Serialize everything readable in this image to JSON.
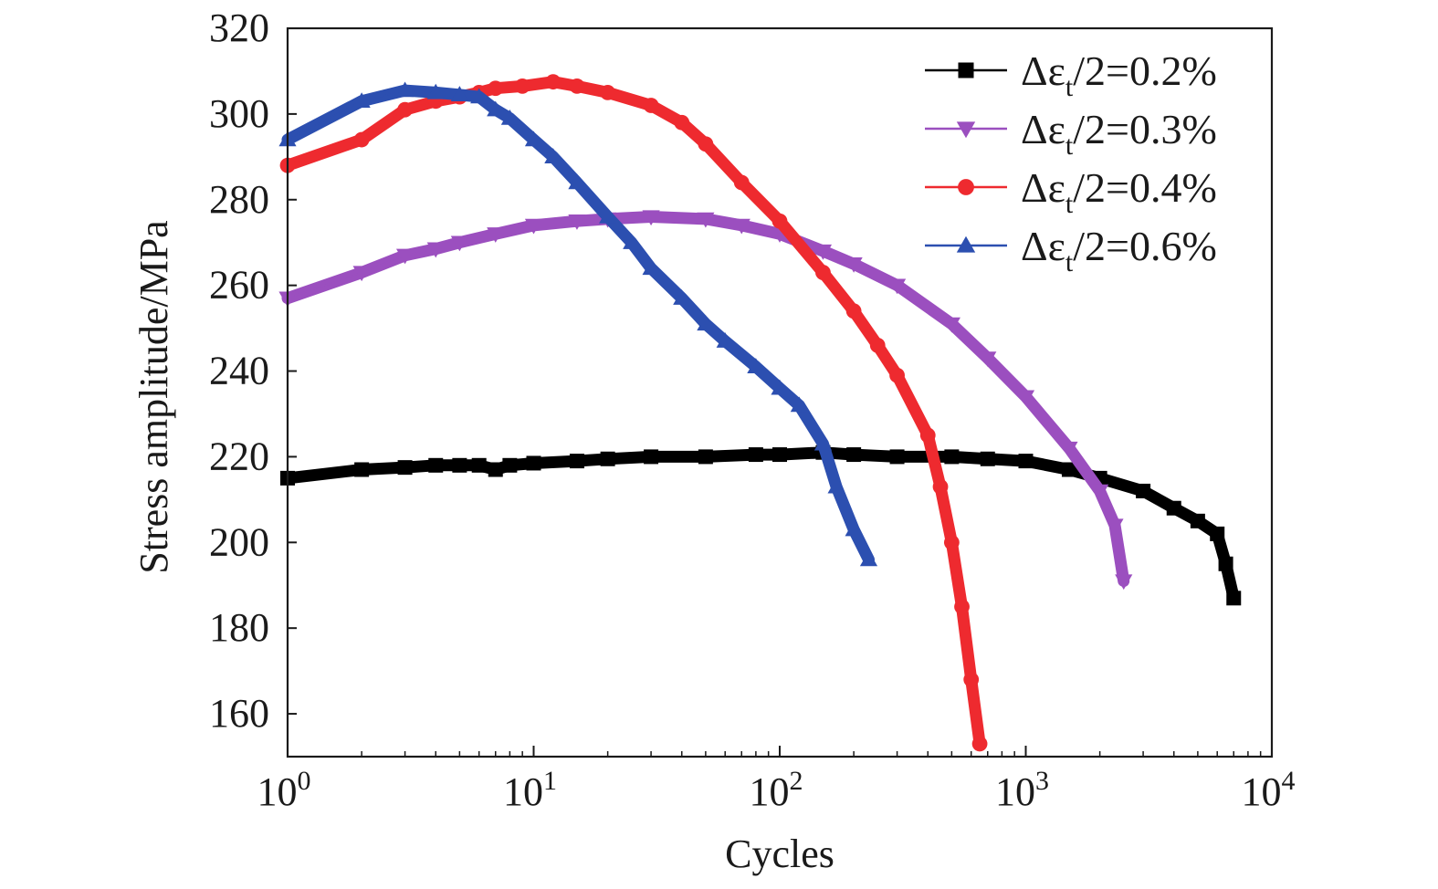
{
  "chart_data": {
    "type": "line",
    "title": "",
    "xlabel": "Cycles",
    "ylabel": "Stress amplitude/MPa",
    "x_scale": "log",
    "xlim": [
      1,
      10000
    ],
    "ylim": [
      150,
      320
    ],
    "x_ticks": [
      {
        "value": 1,
        "base": "10",
        "exp": "0"
      },
      {
        "value": 10,
        "base": "10",
        "exp": "1"
      },
      {
        "value": 100,
        "base": "10",
        "exp": "2"
      },
      {
        "value": 1000,
        "base": "10",
        "exp": "3"
      },
      {
        "value": 10000,
        "base": "10",
        "exp": "4"
      }
    ],
    "y_ticks": [
      160,
      180,
      200,
      220,
      240,
      260,
      280,
      300,
      320
    ],
    "grid": false,
    "legend_position": "top-right",
    "series": [
      {
        "name": "Δε_t/2=0.2%",
        "legend_label": {
          "prefix": "Δε",
          "sub": "t",
          "suffix": "/2=0.2%"
        },
        "color": "#000000",
        "marker": "square",
        "x": [
          1,
          2,
          3,
          4,
          5,
          6,
          7,
          8,
          10,
          15,
          20,
          30,
          50,
          80,
          100,
          150,
          200,
          300,
          500,
          700,
          1000,
          1500,
          2000,
          3000,
          4000,
          5000,
          6000,
          6500,
          7000
        ],
        "y": [
          215,
          217,
          217.5,
          218,
          218,
          218,
          217,
          218,
          218.5,
          219,
          219.5,
          220,
          220,
          220.5,
          220.5,
          221,
          220.5,
          220,
          220,
          219.5,
          219,
          217,
          215,
          212,
          208,
          205,
          202,
          195,
          187
        ]
      },
      {
        "name": "Δε_t/2=0.3%",
        "legend_label": {
          "prefix": "Δε",
          "sub": "t",
          "suffix": "/2=0.3%"
        },
        "color": "#9b4fbf",
        "marker": "triangle-down",
        "x": [
          1,
          2,
          3,
          4,
          5,
          7,
          10,
          15,
          20,
          30,
          50,
          70,
          100,
          150,
          200,
          300,
          500,
          700,
          1000,
          1500,
          2000,
          2300,
          2500
        ],
        "y": [
          257,
          263,
          267,
          268.5,
          270,
          272,
          274,
          275,
          275.5,
          276,
          275.5,
          274,
          272,
          268,
          265,
          260,
          251,
          243,
          234,
          222,
          212,
          204,
          191
        ]
      },
      {
        "name": "Δε_t/2=0.4%",
        "legend_label": {
          "prefix": "Δε",
          "sub": "t",
          "suffix": "/2=0.4%"
        },
        "color": "#ee2a2f",
        "marker": "circle",
        "x": [
          1,
          2,
          3,
          4,
          5,
          6,
          7,
          9,
          12,
          15,
          20,
          30,
          40,
          50,
          70,
          100,
          150,
          200,
          250,
          300,
          400,
          450,
          500,
          550,
          600,
          650
        ],
        "y": [
          288,
          294,
          301,
          303,
          304,
          305,
          306,
          306.5,
          307.5,
          306.5,
          305,
          302,
          298,
          293,
          284,
          275,
          263,
          254,
          246,
          239,
          225,
          213,
          200,
          185,
          168,
          153
        ]
      },
      {
        "name": "Δε_t/2=0.6%",
        "legend_label": {
          "prefix": "Δε",
          "sub": "t",
          "suffix": "/2=0.6%"
        },
        "color": "#2c4fb0",
        "marker": "triangle-up",
        "x": [
          1,
          2,
          3,
          4,
          5,
          6,
          7,
          8,
          10,
          12,
          15,
          20,
          25,
          30,
          40,
          50,
          60,
          80,
          100,
          120,
          150,
          170,
          200,
          230
        ],
        "y": [
          294,
          303,
          305.5,
          305,
          304.5,
          304,
          301,
          299,
          294,
          290,
          284,
          276,
          270,
          264,
          257,
          251,
          247,
          241,
          236,
          232,
          223,
          213,
          203,
          196
        ]
      }
    ]
  }
}
